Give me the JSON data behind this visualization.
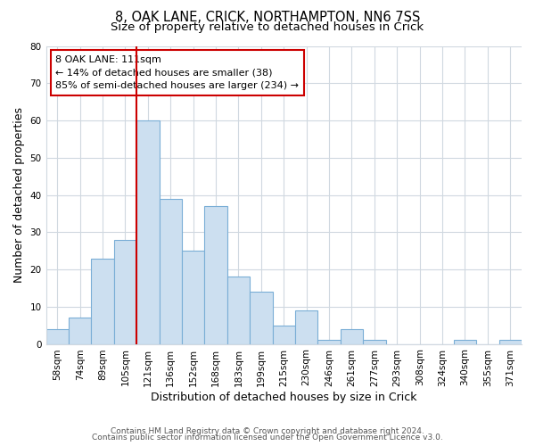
{
  "title": "8, OAK LANE, CRICK, NORTHAMPTON, NN6 7SS",
  "subtitle": "Size of property relative to detached houses in Crick",
  "xlabel": "Distribution of detached houses by size in Crick",
  "ylabel": "Number of detached properties",
  "bar_labels": [
    "58sqm",
    "74sqm",
    "89sqm",
    "105sqm",
    "121sqm",
    "136sqm",
    "152sqm",
    "168sqm",
    "183sqm",
    "199sqm",
    "215sqm",
    "230sqm",
    "246sqm",
    "261sqm",
    "277sqm",
    "293sqm",
    "308sqm",
    "324sqm",
    "340sqm",
    "355sqm",
    "371sqm"
  ],
  "bar_values": [
    4,
    7,
    23,
    28,
    60,
    39,
    25,
    37,
    18,
    14,
    5,
    9,
    1,
    4,
    1,
    0,
    0,
    0,
    1,
    0,
    1
  ],
  "bar_color": "#ccdff0",
  "bar_edge_color": "#7aaed6",
  "vline_index": 4,
  "vline_color": "#cc0000",
  "ylim": [
    0,
    80
  ],
  "yticks": [
    0,
    10,
    20,
    30,
    40,
    50,
    60,
    70,
    80
  ],
  "annotation_title": "8 OAK LANE: 111sqm",
  "annotation_line1": "← 14% of detached houses are smaller (38)",
  "annotation_line2": "85% of semi-detached houses are larger (234) →",
  "footer_line1": "Contains HM Land Registry data © Crown copyright and database right 2024.",
  "footer_line2": "Contains public sector information licensed under the Open Government Licence v3.0.",
  "background_color": "#ffffff",
  "plot_background_color": "#ffffff",
  "title_fontsize": 10.5,
  "subtitle_fontsize": 9.5,
  "axis_label_fontsize": 9,
  "tick_label_fontsize": 7.5,
  "footer_fontsize": 6.5,
  "grid_color": "#d0d8e0"
}
